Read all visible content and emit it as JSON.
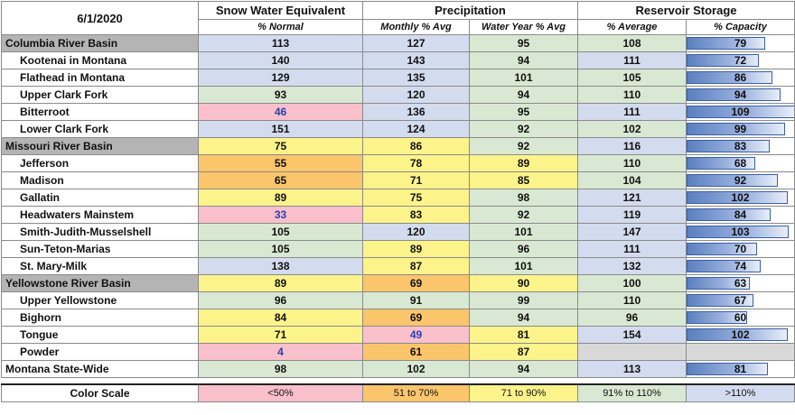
{
  "header": {
    "date": "6/1/2020",
    "groups": {
      "swe": "Snow Water Equivalent",
      "precip": "Precipitation",
      "reservoir": "Reservoir Storage"
    },
    "subheaders": {
      "swe": "% Normal",
      "monthly": "Monthly % Avg",
      "water_year": "Water Year % Avg",
      "res_avg": "% Average",
      "capacity": "% Capacity"
    }
  },
  "color_scale": {
    "label": "Color Scale",
    "bins": [
      {
        "label": "<50%",
        "color": "#f9c0cb"
      },
      {
        "label": "51 to 70%",
        "color": "#fbc56b"
      },
      {
        "label": "71 to 90%",
        "color": "#fdf38b"
      },
      {
        "label": "91% to 110%",
        "color": "#d9e8d2"
      },
      {
        "label": ">110%",
        "color": "#d3dcee"
      }
    ],
    "empty_color": "#d9d9d9"
  },
  "chart_data": {
    "type": "table",
    "columns": [
      "Snow Water Equivalent % Normal",
      "Precipitation Monthly % Avg",
      "Precipitation Water Year % Avg",
      "Reservoir Storage % Average",
      "Reservoir Storage % Capacity"
    ],
    "rows": [
      {
        "name": "Columbia River Basin",
        "basin": true,
        "swe": "113",
        "monthly": "127",
        "water_year": "95",
        "res_avg": "108",
        "capacity": "79"
      },
      {
        "name": "Kootenai in Montana",
        "swe": "140",
        "monthly": "143",
        "water_year": "94",
        "res_avg": "111",
        "capacity": "72"
      },
      {
        "name": "Flathead in Montana",
        "swe": "129",
        "monthly": "135",
        "water_year": "101",
        "res_avg": "105",
        "capacity": "86"
      },
      {
        "name": "Upper Clark Fork",
        "swe": "93",
        "monthly": "120",
        "water_year": "94",
        "res_avg": "110",
        "capacity": "94"
      },
      {
        "name": "Bitterroot",
        "swe": "46",
        "monthly": "136",
        "water_year": "95",
        "res_avg": "111",
        "capacity": "109"
      },
      {
        "name": "Lower Clark Fork",
        "swe": "151",
        "monthly": "124",
        "water_year": "92",
        "res_avg": "102",
        "capacity": "99"
      },
      {
        "name": "Missouri River Basin",
        "basin": true,
        "swe": "75",
        "monthly": "86",
        "water_year": "92",
        "res_avg": "116",
        "capacity": "83"
      },
      {
        "name": "Jefferson",
        "swe": "55",
        "monthly": "78",
        "water_year": "89",
        "res_avg": "110",
        "capacity": "68"
      },
      {
        "name": "Madison",
        "swe": "65",
        "monthly": "71",
        "water_year": "85",
        "res_avg": "104",
        "capacity": "92"
      },
      {
        "name": "Gallatin",
        "swe": "89",
        "monthly": "75",
        "water_year": "98",
        "res_avg": "121",
        "capacity": "102"
      },
      {
        "name": "Headwaters Mainstem",
        "swe": "33",
        "monthly": "83",
        "water_year": "92",
        "res_avg": "119",
        "capacity": "84"
      },
      {
        "name": "Smith-Judith-Musselshell",
        "swe": "105",
        "monthly": "120",
        "water_year": "101",
        "res_avg": "147",
        "capacity": "103"
      },
      {
        "name": "Sun-Teton-Marias",
        "swe": "105",
        "monthly": "89",
        "water_year": "96",
        "res_avg": "111",
        "capacity": "70"
      },
      {
        "name": "St. Mary-Milk",
        "swe": "138",
        "monthly": "87",
        "water_year": "101",
        "res_avg": "132",
        "capacity": "74"
      },
      {
        "name": "Yellowstone River Basin",
        "basin": true,
        "swe": "89",
        "monthly": "69",
        "water_year": "90",
        "res_avg": "100",
        "capacity": "63"
      },
      {
        "name": "Upper Yellowstone",
        "swe": "96",
        "monthly": "91",
        "water_year": "99",
        "res_avg": "110",
        "capacity": "67"
      },
      {
        "name": "Bighorn",
        "swe": "84",
        "monthly": "69",
        "water_year": "94",
        "res_avg": "96",
        "capacity": "60"
      },
      {
        "name": "Tongue",
        "swe": "71",
        "monthly": "49",
        "water_year": "81",
        "res_avg": "154",
        "capacity": "102"
      },
      {
        "name": "Powder",
        "swe": "4",
        "monthly": "61",
        "water_year": "87",
        "res_avg": "",
        "capacity": ""
      },
      {
        "name": "Montana State-Wide",
        "statewide": true,
        "swe": "98",
        "monthly": "102",
        "water_year": "94",
        "res_avg": "113",
        "capacity": "81"
      }
    ]
  }
}
